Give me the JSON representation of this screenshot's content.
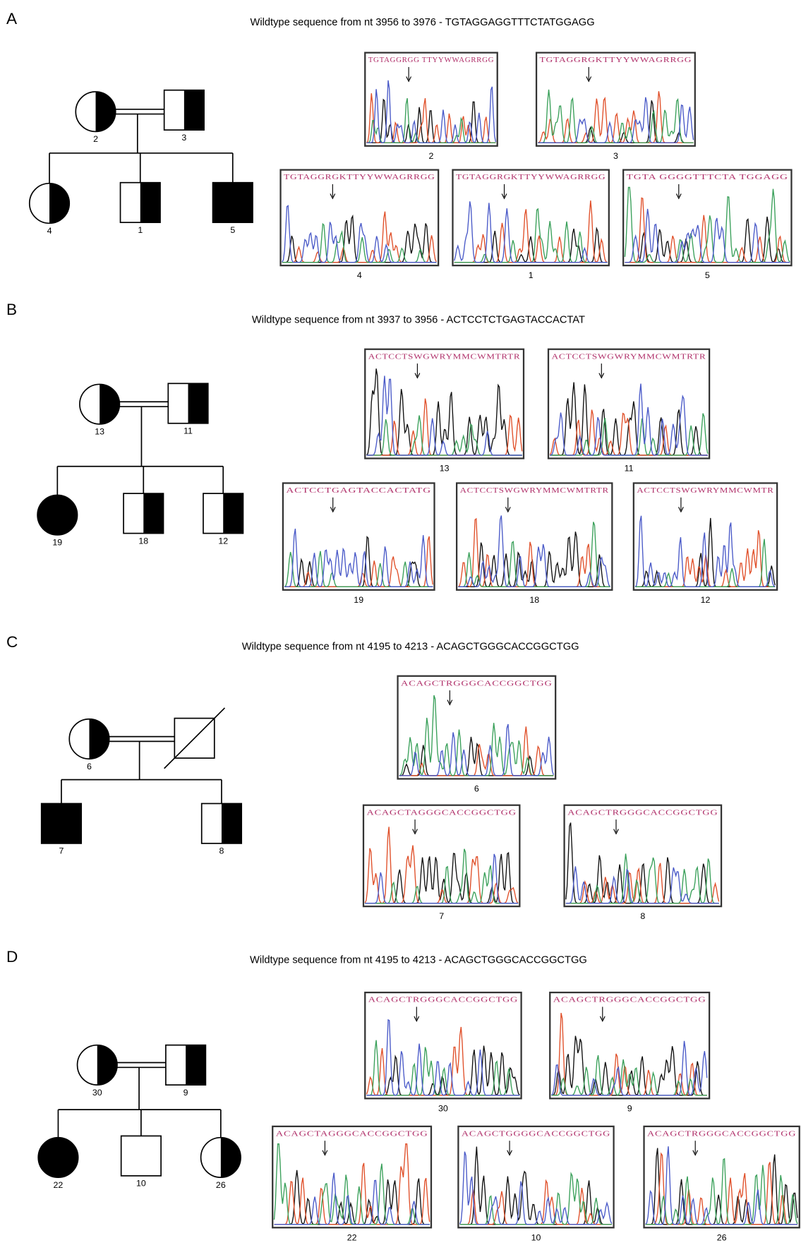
{
  "panels": [
    {
      "label": "A",
      "title": "Wildtype sequence from nt 3956 to 3976 - TGTAGGAGGTTTCTATGGAGG",
      "pedigree": [
        "2",
        "3",
        "4",
        "1",
        "5"
      ],
      "traces": [
        {
          "sequence": "TGTAGGRGG TTYYWWAGRRGG",
          "sample": "2"
        },
        {
          "sequence": "TGTAGGRGKTTYYWWAGRRGG",
          "sample": "3"
        },
        {
          "sequence": "TGTAGGRGKTTYYWWAGRRGG",
          "sample": "4"
        },
        {
          "sequence": "TGTAGGRGKTTYYWWAGRRGG",
          "sample": "1"
        },
        {
          "sequence": "TGTA GGGGTTTCTA TGGAGG",
          "sample": "5"
        }
      ]
    },
    {
      "label": "B",
      "title": "Wildtype sequence from nt 3937 to 3956 - ACTCCTCTGAGTACCACTAT",
      "pedigree": [
        "13",
        "11",
        "19",
        "18",
        "12"
      ],
      "traces": [
        {
          "sequence": "ACTCCTSWGWRYMMCWMTRTR",
          "sample": "13"
        },
        {
          "sequence": "ACTCCTSWGWRYMMCWMTRTR",
          "sample": "11"
        },
        {
          "sequence": "ACTCCTGAGTACCACTATG",
          "sample": "19"
        },
        {
          "sequence": "ACTCCTSWGWRYMMCWMTRTR",
          "sample": "18"
        },
        {
          "sequence": "ACTCCTSWGWRYMMCWMTR",
          "sample": "12"
        }
      ]
    },
    {
      "label": "C",
      "title": "Wildtype sequence from nt 4195 to 4213 - ACAGCTGGGCACCGGCTGG",
      "pedigree": [
        "6",
        "7",
        "8"
      ],
      "traces": [
        {
          "sequence": "ACAGCTRGGGCACCGGCTGG",
          "sample": "6"
        },
        {
          "sequence": "ACAGCTAGGGCACCGGCTGG",
          "sample": "7"
        },
        {
          "sequence": "ACAGCTRGGGCACCGGCTGG",
          "sample": "8"
        }
      ]
    },
    {
      "label": "D",
      "title": "Wildtype sequence from nt 4195 to 4213 - ACAGCTGGGCACCGGCTGG",
      "pedigree": [
        "30",
        "9",
        "22",
        "10",
        "26"
      ],
      "traces": [
        {
          "sequence": "ACAGCTRGGGCACCGGCTGG",
          "sample": "30"
        },
        {
          "sequence": "ACAGCTRGGGCACCGGCTGG",
          "sample": "9"
        },
        {
          "sequence": "ACAGCTAGGGCACCGGCTGG",
          "sample": "22"
        },
        {
          "sequence": "ACAGCTGGGGCACCGGCTGG",
          "sample": "10"
        },
        {
          "sequence": "ACAGCTRGGGCACCGGCTGG",
          "sample": "26"
        }
      ]
    }
  ]
}
